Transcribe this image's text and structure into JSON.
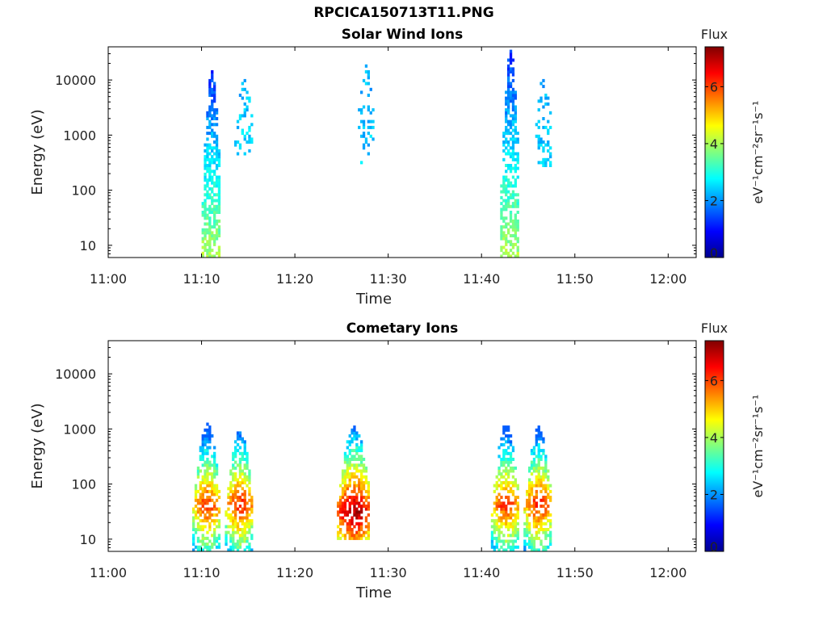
{
  "figure": {
    "title": "RPCICA150713T11.PNG"
  },
  "chart_data": [
    {
      "type": "heatmap",
      "title": "Solar Wind Ions",
      "xlabel": "Time",
      "ylabel": "Energy (eV)",
      "x_ticks": [
        "11:00",
        "11:10",
        "11:20",
        "11:30",
        "11:40",
        "11:50",
        "12:00"
      ],
      "x_range": [
        "11:00",
        "12:03"
      ],
      "y_scale": "log",
      "y_ticks": [
        10,
        100,
        1000,
        10000
      ],
      "y_range": [
        6,
        40000
      ],
      "colorbar": {
        "title": "Flux",
        "label": "eV⁻¹cm⁻²sr⁻¹s⁻¹",
        "range": [
          0,
          7.4
        ],
        "ticks": [
          0,
          2,
          4,
          6
        ]
      },
      "bursts": [
        {
          "t_start": "11:10:00",
          "t_end": "11:12:00",
          "e_min": 6,
          "e_max": 15000,
          "flux_low_e": 4.0,
          "flux_high_e": 1.2,
          "density": 0.65
        },
        {
          "t_start": "11:13:30",
          "t_end": "11:15:30",
          "e_min": 400,
          "e_max": 10000,
          "flux_low_e": 2.6,
          "flux_high_e": 2.2,
          "density": 0.25
        },
        {
          "t_start": "11:26:30",
          "t_end": "11:28:30",
          "e_min": 300,
          "e_max": 18000,
          "flux_low_e": 2.4,
          "flux_high_e": 2.2,
          "density": 0.22
        },
        {
          "t_start": "11:42:00",
          "t_end": "11:44:00",
          "e_min": 6,
          "e_max": 35000,
          "flux_low_e": 4.0,
          "flux_high_e": 1.2,
          "density": 0.65
        },
        {
          "t_start": "11:45:30",
          "t_end": "11:47:30",
          "e_min": 300,
          "e_max": 10000,
          "flux_low_e": 2.5,
          "flux_high_e": 2.2,
          "density": 0.3
        }
      ]
    },
    {
      "type": "heatmap",
      "title": "Cometary Ions",
      "xlabel": "Time",
      "ylabel": "Energy (eV)",
      "x_ticks": [
        "11:00",
        "11:10",
        "11:20",
        "11:30",
        "11:40",
        "11:50",
        "12:00"
      ],
      "x_range": [
        "11:00",
        "12:03"
      ],
      "y_scale": "log",
      "y_ticks": [
        10,
        100,
        1000,
        10000
      ],
      "y_range": [
        6,
        40000
      ],
      "colorbar": {
        "title": "Flux",
        "label": "eV⁻¹cm⁻²sr⁻¹s⁻¹",
        "range": [
          0,
          7.4
        ],
        "ticks": [
          0,
          2,
          4,
          6
        ]
      },
      "bursts": [
        {
          "t_start": "11:09:00",
          "t_end": "11:12:00",
          "e_min": 6,
          "e_max": 1200,
          "peak_e": 40,
          "peak_flux": 6.2,
          "density": 0.6
        },
        {
          "t_start": "11:12:30",
          "t_end": "11:15:30",
          "e_min": 6,
          "e_max": 900,
          "peak_e": 40,
          "peak_flux": 6.3,
          "density": 0.6
        },
        {
          "t_start": "11:24:30",
          "t_end": "11:28:00",
          "e_min": 10,
          "e_max": 1100,
          "peak_e": 30,
          "peak_flux": 7.2,
          "density": 0.6
        },
        {
          "t_start": "11:41:00",
          "t_end": "11:44:00",
          "e_min": 6,
          "e_max": 1200,
          "peak_e": 40,
          "peak_flux": 6.2,
          "density": 0.6
        },
        {
          "t_start": "11:44:30",
          "t_end": "11:47:30",
          "e_min": 6,
          "e_max": 1100,
          "peak_e": 40,
          "peak_flux": 6.3,
          "density": 0.6
        }
      ]
    }
  ]
}
